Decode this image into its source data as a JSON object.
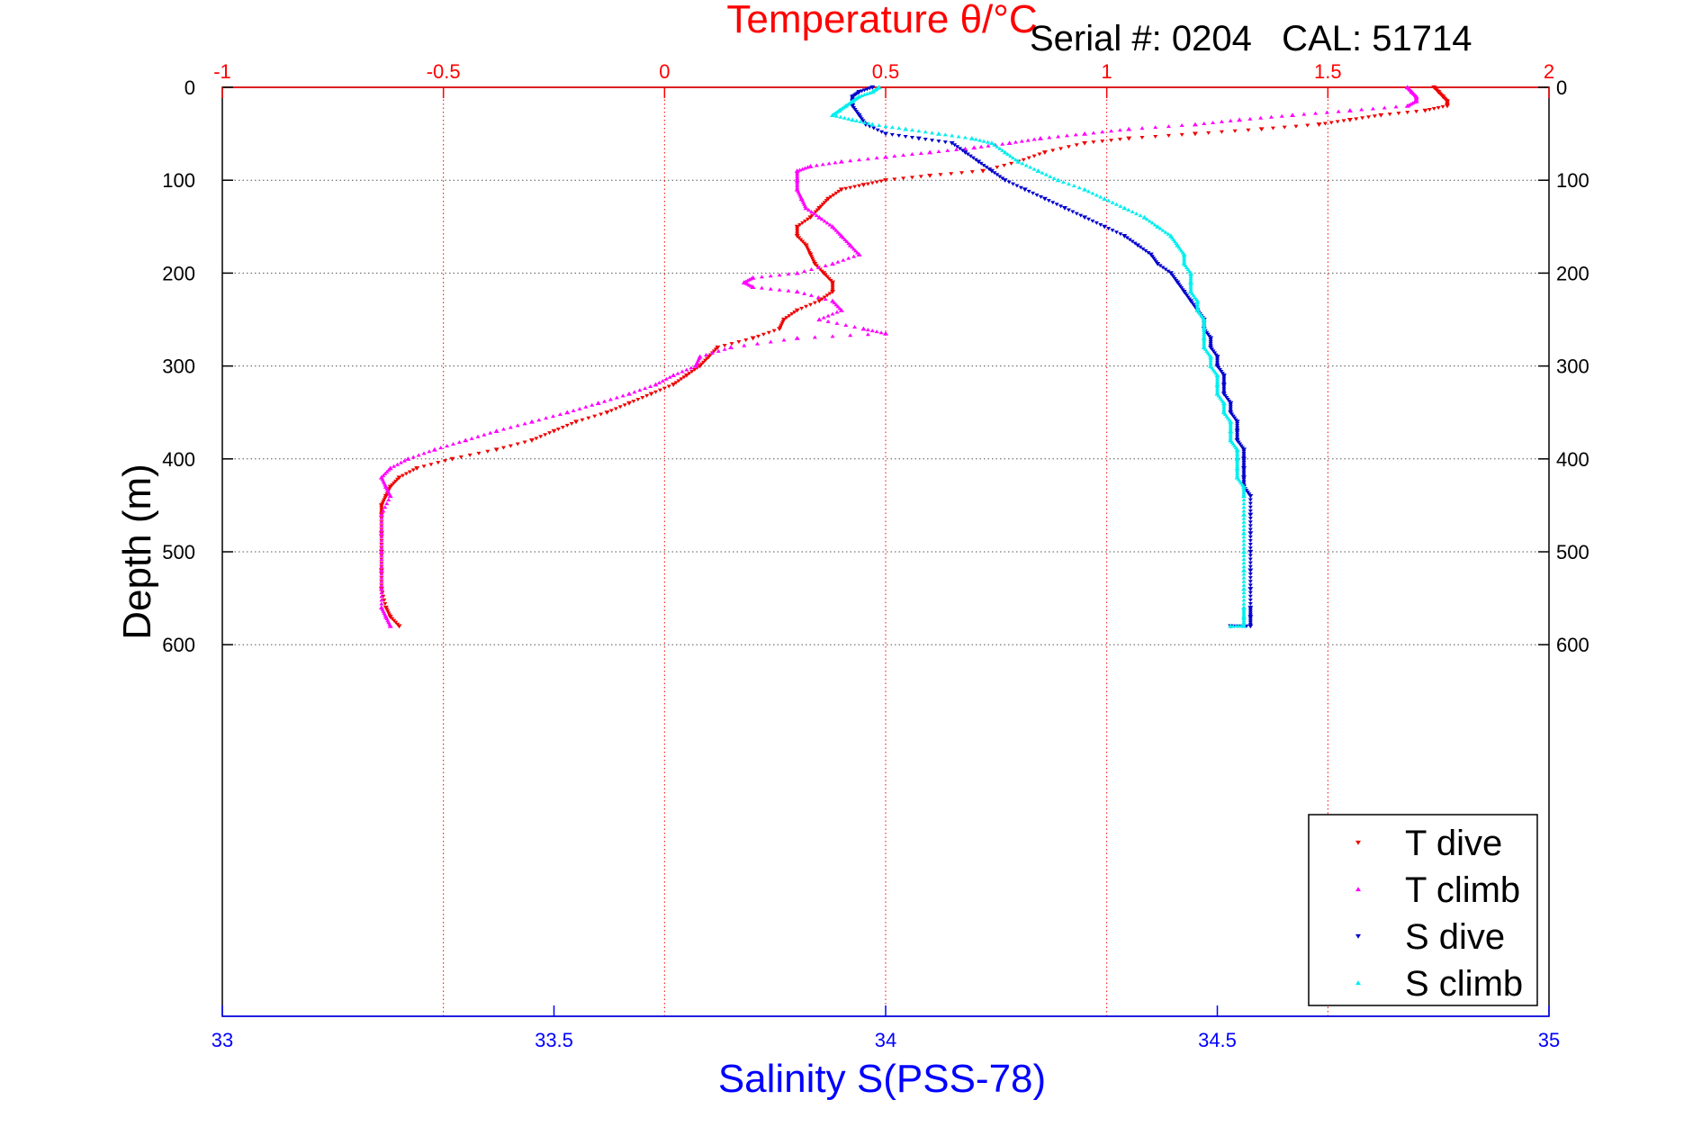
{
  "chart_data": {
    "type": "scatter",
    "title": "Temperature θ/°C",
    "annotation": "Serial #: 0204   CAL: 51714",
    "ylabel": "Depth (m)",
    "xlabel_bottom": "Salinity S(PSS-78)",
    "ylim": [
      0,
      1000
    ],
    "y_ticks": [
      "0",
      "100",
      "200",
      "300",
      "400",
      "500",
      "600"
    ],
    "y_tick_values": [
      0,
      100,
      200,
      300,
      400,
      500,
      600
    ],
    "temp_axis": {
      "range": [
        -1,
        2
      ],
      "ticks": [
        "-1",
        "-0.5",
        "0",
        "0.5",
        "1",
        "1.5",
        "2"
      ],
      "tick_values": [
        -1,
        -0.5,
        0,
        0.5,
        1,
        1.5,
        2
      ]
    },
    "sal_axis": {
      "range": [
        33,
        35
      ],
      "ticks": [
        "33",
        "33.5",
        "34",
        "34.5",
        "35"
      ],
      "tick_values": [
        33,
        33.5,
        34,
        34.5,
        35
      ]
    },
    "grid": true,
    "legend_position": "bottom-right",
    "colors": {
      "temp": "#ff0000",
      "sal": "#0000ff",
      "t_dive": "#ee0000",
      "t_climb": "#ff00ff",
      "s_dive": "#0000cc",
      "s_climb": "#00eeee",
      "grid": "#555555"
    },
    "series": [
      {
        "name": "T dive",
        "axis": "temp",
        "marker": "down",
        "color": "#ee0000",
        "points": [
          [
            1.74,
            0
          ],
          [
            1.75,
            5
          ],
          [
            1.76,
            10
          ],
          [
            1.77,
            15
          ],
          [
            1.77,
            20
          ],
          [
            1.72,
            25
          ],
          [
            1.62,
            30
          ],
          [
            1.55,
            35
          ],
          [
            1.48,
            40
          ],
          [
            1.35,
            45
          ],
          [
            1.2,
            50
          ],
          [
            1.05,
            55
          ],
          [
            0.95,
            60
          ],
          [
            0.86,
            70
          ],
          [
            0.8,
            80
          ],
          [
            0.72,
            90
          ],
          [
            0.6,
            95
          ],
          [
            0.5,
            100
          ],
          [
            0.45,
            105
          ],
          [
            0.4,
            110
          ],
          [
            0.37,
            120
          ],
          [
            0.35,
            130
          ],
          [
            0.33,
            140
          ],
          [
            0.3,
            150
          ],
          [
            0.3,
            160
          ],
          [
            0.32,
            170
          ],
          [
            0.33,
            180
          ],
          [
            0.34,
            190
          ],
          [
            0.36,
            200
          ],
          [
            0.38,
            210
          ],
          [
            0.38,
            220
          ],
          [
            0.35,
            230
          ],
          [
            0.3,
            240
          ],
          [
            0.27,
            250
          ],
          [
            0.26,
            260
          ],
          [
            0.2,
            270
          ],
          [
            0.12,
            280
          ],
          [
            0.1,
            290
          ],
          [
            0.08,
            300
          ],
          [
            0.05,
            310
          ],
          [
            0.02,
            320
          ],
          [
            -0.03,
            330
          ],
          [
            -0.08,
            340
          ],
          [
            -0.13,
            350
          ],
          [
            -0.2,
            360
          ],
          [
            -0.25,
            370
          ],
          [
            -0.3,
            380
          ],
          [
            -0.38,
            390
          ],
          [
            -0.48,
            400
          ],
          [
            -0.56,
            410
          ],
          [
            -0.6,
            420
          ],
          [
            -0.62,
            430
          ],
          [
            -0.63,
            440
          ],
          [
            -0.64,
            450
          ],
          [
            -0.64,
            460
          ],
          [
            -0.64,
            480
          ],
          [
            -0.64,
            500
          ],
          [
            -0.64,
            520
          ],
          [
            -0.64,
            540
          ],
          [
            -0.63,
            560
          ],
          [
            -0.62,
            570
          ],
          [
            -0.6,
            580
          ]
        ]
      },
      {
        "name": "T climb",
        "axis": "temp",
        "marker": "up",
        "color": "#ff00ff",
        "points": [
          [
            1.68,
            0
          ],
          [
            1.69,
            5
          ],
          [
            1.7,
            10
          ],
          [
            1.7,
            15
          ],
          [
            1.68,
            20
          ],
          [
            1.55,
            25
          ],
          [
            1.42,
            30
          ],
          [
            1.3,
            35
          ],
          [
            1.2,
            40
          ],
          [
            1.05,
            45
          ],
          [
            0.95,
            50
          ],
          [
            0.85,
            55
          ],
          [
            0.78,
            60
          ],
          [
            0.7,
            65
          ],
          [
            0.6,
            70
          ],
          [
            0.5,
            75
          ],
          [
            0.4,
            80
          ],
          [
            0.33,
            85
          ],
          [
            0.3,
            90
          ],
          [
            0.3,
            100
          ],
          [
            0.3,
            110
          ],
          [
            0.31,
            120
          ],
          [
            0.32,
            130
          ],
          [
            0.35,
            140
          ],
          [
            0.38,
            150
          ],
          [
            0.4,
            160
          ],
          [
            0.42,
            170
          ],
          [
            0.44,
            180
          ],
          [
            0.38,
            190
          ],
          [
            0.3,
            200
          ],
          [
            0.2,
            205
          ],
          [
            0.18,
            210
          ],
          [
            0.2,
            215
          ],
          [
            0.3,
            220
          ],
          [
            0.38,
            230
          ],
          [
            0.4,
            240
          ],
          [
            0.35,
            250
          ],
          [
            0.45,
            260
          ],
          [
            0.5,
            265
          ],
          [
            0.3,
            270
          ],
          [
            0.15,
            280
          ],
          [
            0.08,
            290
          ],
          [
            0.07,
            300
          ],
          [
            0.02,
            310
          ],
          [
            -0.02,
            320
          ],
          [
            -0.08,
            330
          ],
          [
            -0.15,
            340
          ],
          [
            -0.22,
            350
          ],
          [
            -0.3,
            360
          ],
          [
            -0.38,
            370
          ],
          [
            -0.45,
            380
          ],
          [
            -0.52,
            390
          ],
          [
            -0.58,
            400
          ],
          [
            -0.62,
            410
          ],
          [
            -0.64,
            420
          ],
          [
            -0.63,
            430
          ],
          [
            -0.62,
            440
          ],
          [
            -0.64,
            460
          ],
          [
            -0.64,
            480
          ],
          [
            -0.64,
            500
          ],
          [
            -0.64,
            520
          ],
          [
            -0.64,
            540
          ],
          [
            -0.64,
            560
          ],
          [
            -0.63,
            570
          ],
          [
            -0.62,
            580
          ]
        ]
      },
      {
        "name": "S dive",
        "axis": "sal",
        "marker": "down",
        "color": "#0000cc",
        "points": [
          [
            33.98,
            0
          ],
          [
            33.96,
            5
          ],
          [
            33.95,
            10
          ],
          [
            33.95,
            15
          ],
          [
            33.95,
            20
          ],
          [
            33.96,
            30
          ],
          [
            33.97,
            40
          ],
          [
            34.0,
            50
          ],
          [
            34.05,
            55
          ],
          [
            34.1,
            60
          ],
          [
            34.12,
            70
          ],
          [
            34.14,
            80
          ],
          [
            34.16,
            90
          ],
          [
            34.18,
            100
          ],
          [
            34.21,
            110
          ],
          [
            34.24,
            120
          ],
          [
            34.27,
            130
          ],
          [
            34.3,
            140
          ],
          [
            34.33,
            150
          ],
          [
            34.36,
            160
          ],
          [
            34.38,
            170
          ],
          [
            34.4,
            180
          ],
          [
            34.41,
            190
          ],
          [
            34.43,
            200
          ],
          [
            34.44,
            210
          ],
          [
            34.45,
            220
          ],
          [
            34.46,
            230
          ],
          [
            34.47,
            240
          ],
          [
            34.48,
            250
          ],
          [
            34.48,
            260
          ],
          [
            34.49,
            270
          ],
          [
            34.49,
            280
          ],
          [
            34.5,
            290
          ],
          [
            34.5,
            300
          ],
          [
            34.51,
            310
          ],
          [
            34.51,
            320
          ],
          [
            34.51,
            330
          ],
          [
            34.52,
            340
          ],
          [
            34.52,
            350
          ],
          [
            34.53,
            360
          ],
          [
            34.53,
            370
          ],
          [
            34.53,
            380
          ],
          [
            34.54,
            390
          ],
          [
            34.54,
            400
          ],
          [
            34.54,
            410
          ],
          [
            34.54,
            420
          ],
          [
            34.54,
            430
          ],
          [
            34.55,
            440
          ],
          [
            34.55,
            460
          ],
          [
            34.55,
            480
          ],
          [
            34.55,
            500
          ],
          [
            34.55,
            520
          ],
          [
            34.55,
            540
          ],
          [
            34.55,
            560
          ],
          [
            34.55,
            570
          ],
          [
            34.55,
            580
          ],
          [
            34.52,
            580
          ]
        ]
      },
      {
        "name": "S climb",
        "axis": "sal",
        "marker": "up",
        "color": "#00eeee",
        "points": [
          [
            33.99,
            0
          ],
          [
            33.98,
            5
          ],
          [
            33.96,
            10
          ],
          [
            33.95,
            15
          ],
          [
            33.94,
            20
          ],
          [
            33.93,
            25
          ],
          [
            33.92,
            30
          ],
          [
            33.95,
            35
          ],
          [
            33.98,
            40
          ],
          [
            34.03,
            45
          ],
          [
            34.08,
            50
          ],
          [
            34.13,
            55
          ],
          [
            34.16,
            60
          ],
          [
            34.18,
            70
          ],
          [
            34.2,
            80
          ],
          [
            34.23,
            90
          ],
          [
            34.26,
            100
          ],
          [
            34.3,
            110
          ],
          [
            34.33,
            120
          ],
          [
            34.36,
            130
          ],
          [
            34.39,
            140
          ],
          [
            34.41,
            150
          ],
          [
            34.43,
            160
          ],
          [
            34.44,
            170
          ],
          [
            34.45,
            180
          ],
          [
            34.45,
            190
          ],
          [
            34.46,
            200
          ],
          [
            34.46,
            210
          ],
          [
            34.46,
            220
          ],
          [
            34.47,
            230
          ],
          [
            34.47,
            240
          ],
          [
            34.48,
            250
          ],
          [
            34.48,
            260
          ],
          [
            34.48,
            270
          ],
          [
            34.48,
            280
          ],
          [
            34.49,
            290
          ],
          [
            34.49,
            300
          ],
          [
            34.5,
            310
          ],
          [
            34.5,
            320
          ],
          [
            34.5,
            330
          ],
          [
            34.51,
            340
          ],
          [
            34.51,
            350
          ],
          [
            34.52,
            360
          ],
          [
            34.52,
            370
          ],
          [
            34.52,
            380
          ],
          [
            34.53,
            390
          ],
          [
            34.53,
            400
          ],
          [
            34.53,
            410
          ],
          [
            34.53,
            420
          ],
          [
            34.54,
            430
          ],
          [
            34.54,
            440
          ],
          [
            34.54,
            460
          ],
          [
            34.54,
            480
          ],
          [
            34.54,
            500
          ],
          [
            34.54,
            520
          ],
          [
            34.54,
            540
          ],
          [
            34.54,
            560
          ],
          [
            34.54,
            570
          ],
          [
            34.54,
            580
          ],
          [
            34.52,
            580
          ]
        ]
      }
    ]
  }
}
